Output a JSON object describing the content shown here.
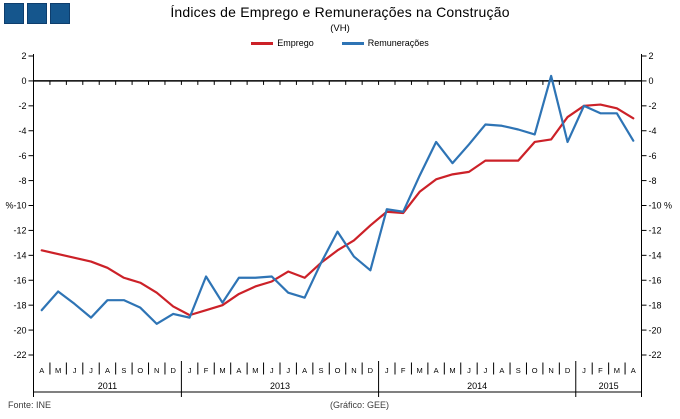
{
  "logo": {
    "square_count": 3,
    "fill": "#15568d",
    "border": "#0e3e6d"
  },
  "footer": {
    "source": "Fonte: INE",
    "credit": "(Gráfico: GEE)"
  },
  "chart_data": {
    "type": "line",
    "title": "Índices de Emprego e Remunerações na Construção",
    "subtitle": "(VH)",
    "unit": "%",
    "ylim": [
      -22,
      2
    ],
    "ytick_step": 2,
    "grid": "zero-line-only",
    "legend_position": "top",
    "months": [
      "A",
      "M",
      "J",
      "J",
      "A",
      "S",
      "O",
      "N",
      "D",
      "J",
      "F",
      "M",
      "A",
      "M",
      "J",
      "J",
      "A",
      "S",
      "O",
      "N",
      "D",
      "J",
      "F",
      "M",
      "A",
      "M",
      "J",
      "J",
      "A",
      "S",
      "O",
      "N",
      "D",
      "J",
      "F",
      "M",
      "A"
    ],
    "year_groups": [
      {
        "label": "2011",
        "months": 9
      },
      {
        "label": "2013",
        "months": 12
      },
      {
        "label": "2014",
        "months": 12
      },
      {
        "label": "2015",
        "months": 4
      }
    ],
    "series": [
      {
        "name": "Emprego",
        "color": "#cc2128",
        "values": [
          -13.6,
          -13.9,
          -14.2,
          -14.5,
          -15.0,
          -15.8,
          -16.2,
          -17.0,
          -18.1,
          -18.8,
          -18.4,
          -18.0,
          -17.1,
          -16.5,
          -16.1,
          -15.3,
          -15.8,
          -14.6,
          -13.6,
          -12.8,
          -11.6,
          -10.5,
          -10.6,
          -8.9,
          -7.9,
          -7.5,
          -7.3,
          -6.4,
          -6.4,
          -6.4,
          -4.9,
          -4.7,
          -2.9,
          -2.0,
          -1.9,
          -2.2,
          -3.0
        ]
      },
      {
        "name": "Remunerações",
        "color": "#2e74b5",
        "values": [
          -18.4,
          -16.9,
          -17.9,
          -19.0,
          -17.6,
          -17.6,
          -18.2,
          -19.5,
          -18.7,
          -19.0,
          -15.7,
          -17.8,
          -15.8,
          -15.8,
          -15.7,
          -17.0,
          -17.4,
          -14.6,
          -12.1,
          -14.1,
          -15.2,
          -10.3,
          -10.5,
          -7.6,
          -4.9,
          -6.6,
          -5.1,
          -3.5,
          -3.6,
          -3.9,
          -4.3,
          0.4,
          -4.9,
          -2.0,
          -2.6,
          -2.6,
          -4.8
        ]
      }
    ]
  }
}
